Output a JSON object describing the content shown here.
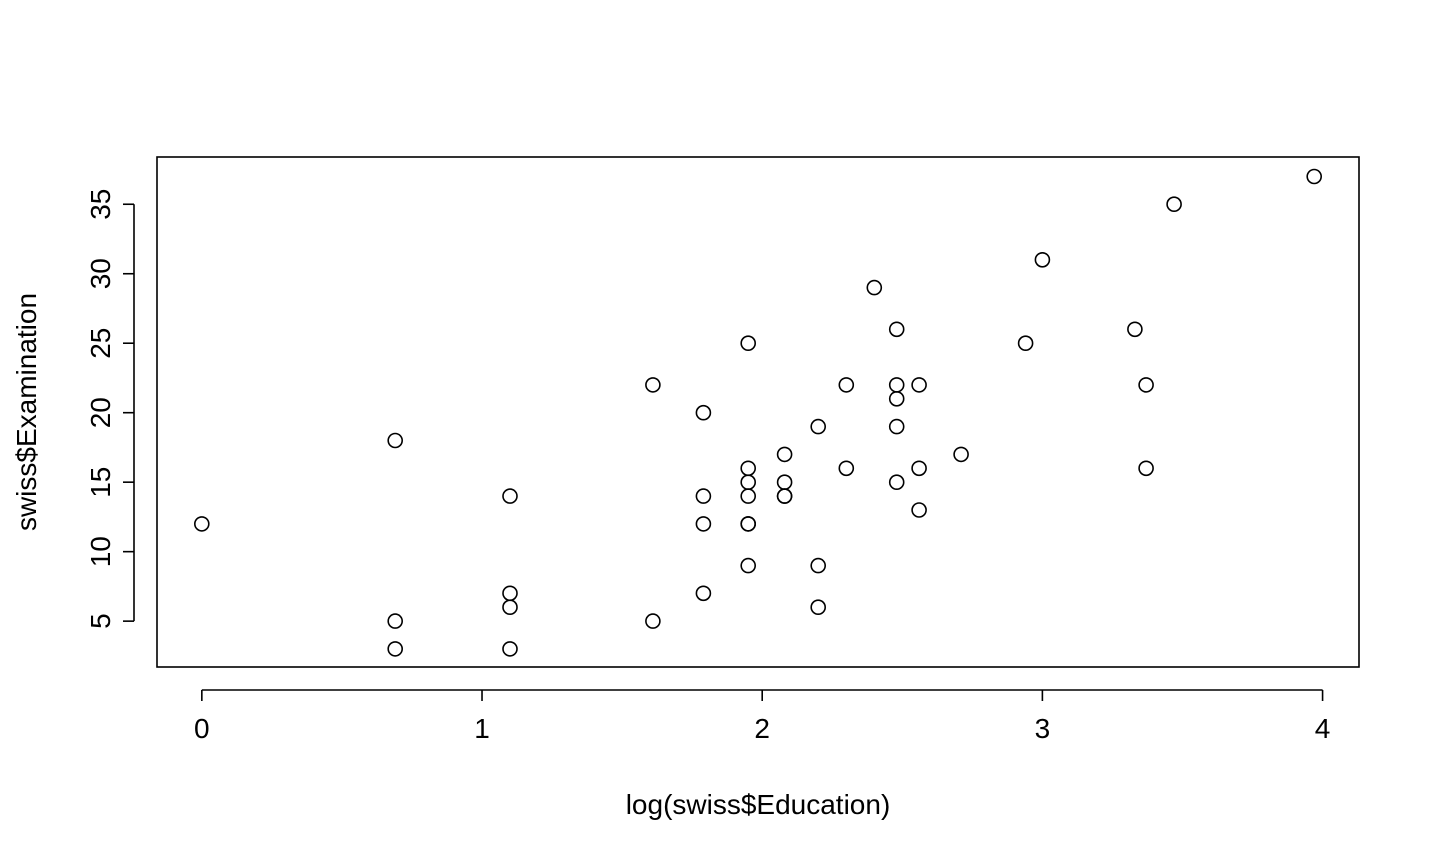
{
  "chart_data": {
    "type": "scatter",
    "title": "",
    "xlabel": "log(swiss$Education)",
    "ylabel": "swiss$Examination",
    "xlim": [
      -0.16,
      4.13
    ],
    "ylim": [
      1.7,
      38.4
    ],
    "xticks": [
      "0",
      "1",
      "2",
      "3",
      "4"
    ],
    "yticks": [
      "5",
      "10",
      "15",
      "20",
      "25",
      "30",
      "35"
    ],
    "grid": false,
    "marker": "open-circle",
    "points": [
      {
        "x": 0.0,
        "y": 12
      },
      {
        "x": 0.69,
        "y": 18
      },
      {
        "x": 0.69,
        "y": 5
      },
      {
        "x": 0.69,
        "y": 3
      },
      {
        "x": 1.1,
        "y": 14
      },
      {
        "x": 1.1,
        "y": 7
      },
      {
        "x": 1.1,
        "y": 6
      },
      {
        "x": 1.1,
        "y": 3
      },
      {
        "x": 1.61,
        "y": 22
      },
      {
        "x": 1.61,
        "y": 5
      },
      {
        "x": 1.79,
        "y": 20
      },
      {
        "x": 1.79,
        "y": 14
      },
      {
        "x": 1.79,
        "y": 12
      },
      {
        "x": 1.79,
        "y": 7
      },
      {
        "x": 1.95,
        "y": 25
      },
      {
        "x": 1.95,
        "y": 16
      },
      {
        "x": 1.95,
        "y": 15
      },
      {
        "x": 1.95,
        "y": 14
      },
      {
        "x": 1.95,
        "y": 12
      },
      {
        "x": 1.95,
        "y": 12
      },
      {
        "x": 1.95,
        "y": 9
      },
      {
        "x": 2.08,
        "y": 17
      },
      {
        "x": 2.08,
        "y": 15
      },
      {
        "x": 2.08,
        "y": 14
      },
      {
        "x": 2.08,
        "y": 14
      },
      {
        "x": 2.2,
        "y": 19
      },
      {
        "x": 2.2,
        "y": 9
      },
      {
        "x": 2.2,
        "y": 6
      },
      {
        "x": 2.3,
        "y": 22
      },
      {
        "x": 2.3,
        "y": 16
      },
      {
        "x": 2.4,
        "y": 29
      },
      {
        "x": 2.48,
        "y": 26
      },
      {
        "x": 2.48,
        "y": 22
      },
      {
        "x": 2.48,
        "y": 21
      },
      {
        "x": 2.48,
        "y": 19
      },
      {
        "x": 2.48,
        "y": 15
      },
      {
        "x": 2.56,
        "y": 22
      },
      {
        "x": 2.56,
        "y": 16
      },
      {
        "x": 2.56,
        "y": 13
      },
      {
        "x": 2.71,
        "y": 17
      },
      {
        "x": 2.94,
        "y": 25
      },
      {
        "x": 3.0,
        "y": 31
      },
      {
        "x": 3.33,
        "y": 26
      },
      {
        "x": 3.37,
        "y": 22
      },
      {
        "x": 3.37,
        "y": 16
      },
      {
        "x": 3.47,
        "y": 35
      },
      {
        "x": 3.97,
        "y": 37
      }
    ]
  }
}
